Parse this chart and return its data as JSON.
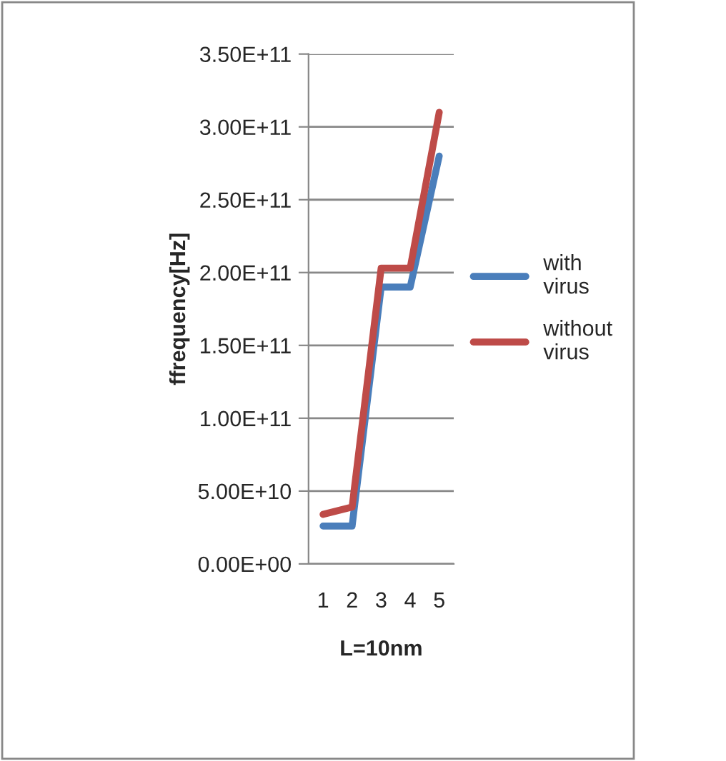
{
  "chart_data": {
    "type": "line",
    "xlabel": "L=10nm",
    "ylabel": "ffrequency[Hz]",
    "categories": [
      "1",
      "2",
      "3",
      "4",
      "5"
    ],
    "series": [
      {
        "name": "with\nvirus",
        "color": "#4a7ebb",
        "values": [
          26000000000.0,
          26000000000.0,
          190000000000.0,
          190000000000.0,
          280000000000.0
        ]
      },
      {
        "name": "without\nvirus",
        "color": "#be4b48",
        "values": [
          34000000000.0,
          39000000000.0,
          203000000000.0,
          203000000000.0,
          310000000000.0
        ]
      }
    ],
    "ylim": [
      0,
      350000000000.0
    ],
    "yticks": [
      {
        "value": 0,
        "label": "0.00E+00"
      },
      {
        "value": 50000000000.0,
        "label": "5.00E+10"
      },
      {
        "value": 100000000000.0,
        "label": "1.00E+11"
      },
      {
        "value": 150000000000.0,
        "label": "1.50E+11"
      },
      {
        "value": 200000000000.0,
        "label": "2.00E+11"
      },
      {
        "value": 250000000000.0,
        "label": "2.50E+11"
      },
      {
        "value": 300000000000.0,
        "label": "3.00E+11"
      },
      {
        "value": 350000000000.0,
        "label": "3.50E+11"
      }
    ],
    "grid": "y",
    "legend": "right",
    "marker": "none",
    "line_style": "solid"
  }
}
